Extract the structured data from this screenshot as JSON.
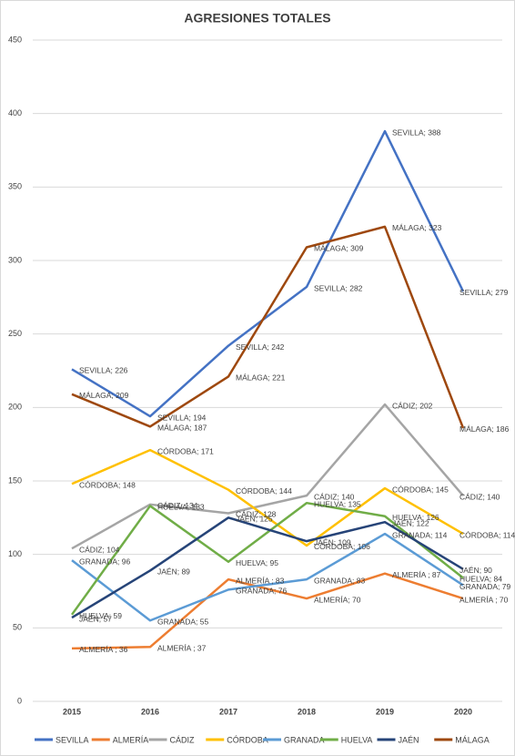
{
  "chart_data": {
    "type": "line",
    "title": "AGRESIONES TOTALES",
    "categories": [
      "2015",
      "2016",
      "2017",
      "2018",
      "2019",
      "2020"
    ],
    "ylim": [
      0,
      450
    ],
    "yticks": [
      0,
      50,
      100,
      150,
      200,
      250,
      300,
      350,
      400,
      450
    ],
    "grid": true,
    "legend": "bottom",
    "series": [
      {
        "name": "SEVILLA",
        "color": "#4472c4",
        "values": [
          226,
          194,
          242,
          282,
          388,
          279
        ],
        "value_labels": [
          "SEVILLA; 226",
          "SEVILLA; 194",
          "SEVILLA; 242",
          "SEVILLA; 282",
          "SEVILLA; 388",
          "SEVILLA; 279"
        ]
      },
      {
        "name": "ALMERÍA",
        "color": "#ed7d31",
        "values": [
          36,
          37,
          83,
          70,
          87,
          70
        ],
        "value_labels": [
          "ALMERÍA ; 36",
          "ALMERÍA ; 37",
          "ALMERÍA ; 83",
          "ALMERÍA; 70",
          "ALMERÍA ; 87",
          "ALMERÍA ; 70"
        ]
      },
      {
        "name": "CÁDIZ",
        "color": "#a5a5a5",
        "values": [
          104,
          134,
          128,
          140,
          202,
          140
        ],
        "value_labels": [
          "CÁDIZ; 104",
          "CÁDIZ; 134",
          "CÁDIZ; 128",
          "CÁDIZ; 140",
          "CÁDIZ; 202",
          "CÁDIZ; 140"
        ]
      },
      {
        "name": "CÓRDOBA",
        "color": "#ffc000",
        "values": [
          148,
          171,
          144,
          106,
          145,
          114
        ],
        "value_labels": [
          "CÓRDOBA; 148",
          "CÓRDOBA; 171",
          "CÓRDOBA; 144",
          "CÓRDOBA; 106",
          "CÓRDOBA; 145",
          "CÓRDOBA; 114"
        ]
      },
      {
        "name": "GRANADA",
        "color": "#5b9bd5",
        "values": [
          96,
          55,
          76,
          83,
          114,
          79
        ],
        "value_labels": [
          "GRANADA; 96",
          "GRANADA; 55",
          "GRANADA; 76",
          "GRANADA; 83",
          "GRANADA; 114",
          "GRANADA; 79"
        ]
      },
      {
        "name": "HUELVA",
        "color": "#70ad47",
        "values": [
          59,
          133,
          95,
          135,
          126,
          84
        ],
        "value_labels": [
          "HUELVA; 59",
          "HUELVA; 133",
          "HUELVA; 95",
          "HUELVA; 135",
          "HUELVA; 126",
          "HUELVA; 84"
        ]
      },
      {
        "name": "JAÉN",
        "color": "#264478",
        "values": [
          57,
          89,
          125,
          109,
          122,
          90
        ],
        "value_labels": [
          "JAÉN; 57",
          "JAÉN; 89",
          "JAÉN; 125",
          "JAÉN; 109",
          "JAÉN; 122",
          "JAÉN; 90"
        ]
      },
      {
        "name": "MÁLAGA",
        "color": "#9e480e",
        "values": [
          209,
          187,
          221,
          309,
          323,
          186
        ],
        "value_labels": [
          "MÁLAGA; 209",
          "MÁLAGA; 187",
          "MÁLAGA; 221",
          "MÁLAGA; 309",
          "MÁLAGA; 323",
          "MÁLAGA; 186"
        ]
      }
    ]
  }
}
